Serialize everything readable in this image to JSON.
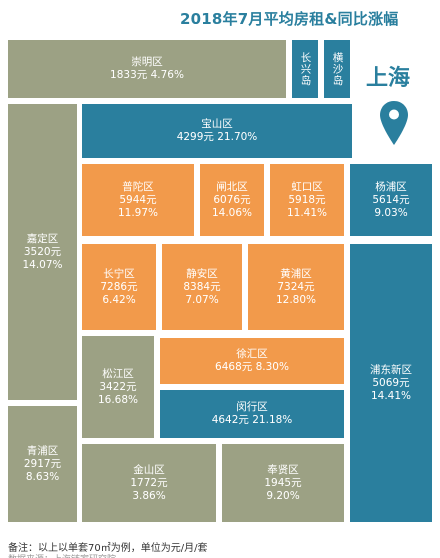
{
  "title": "2018年7月平均房租&同比涨幅",
  "city": "上海",
  "colors": {
    "olive": "#9ca184",
    "teal": "#2a7f9e",
    "orange": "#f29a4b"
  },
  "regions": {
    "chongming": {
      "name": "崇明区",
      "line1": "1833元 4.76%"
    },
    "changxing": {
      "name": "长兴岛"
    },
    "hengsha": {
      "name": "横沙岛"
    },
    "baoshan": {
      "name": "宝山区",
      "line1": "4299元 21.70%"
    },
    "jiading": {
      "name": "嘉定区",
      "line1": "3520元",
      "line2": "14.07%"
    },
    "putuo": {
      "name": "普陀区",
      "line1": "5944元",
      "line2": "11.97%"
    },
    "zhabei": {
      "name": "闸北区",
      "line1": "6076元",
      "line2": "14.06%"
    },
    "hongkou": {
      "name": "虹口区",
      "line1": "5918元",
      "line2": "11.41%"
    },
    "yangpu": {
      "name": "杨浦区",
      "line1": "5614元",
      "line2": "9.03%"
    },
    "changning": {
      "name": "长宁区",
      "line1": "7286元",
      "line2": "6.42%"
    },
    "jingan": {
      "name": "静安区",
      "line1": "8384元",
      "line2": "7.07%"
    },
    "huangpu": {
      "name": "黄浦区",
      "line1": "7324元",
      "line2": "12.80%"
    },
    "songjiang": {
      "name": "松江区",
      "line1": "3422元",
      "line2": "16.68%"
    },
    "xuhui": {
      "name": "徐汇区",
      "line1": "6468元 8.30%"
    },
    "pudong": {
      "name": "浦东新区",
      "line1": "5069元",
      "line2": "14.41%"
    },
    "qingpu": {
      "name": "青浦区",
      "line1": "2917元",
      "line2": "8.63%"
    },
    "minhang": {
      "name": "闵行区",
      "line1": "4642元 21.18%"
    },
    "jinshan": {
      "name": "金山区",
      "line1": "1772元",
      "line2": "3.86%"
    },
    "fengxian": {
      "name": "奉贤区",
      "line1": "1945元",
      "line2": "9.20%"
    }
  },
  "footnote": "备注：以上以单套70㎡为例，单位为元/月/套",
  "footnote_source": "数据来源：上海链家研究院"
}
